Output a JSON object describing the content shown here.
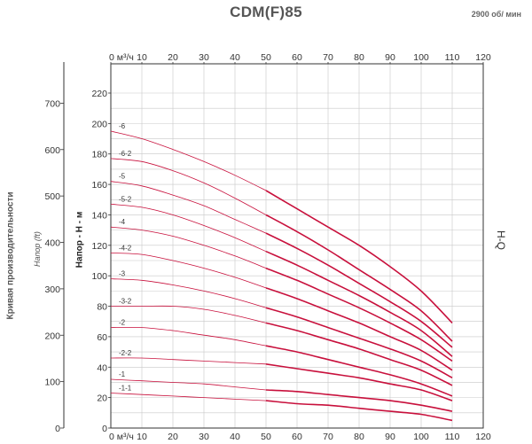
{
  "chart_data": {
    "type": "line",
    "title": "CDM(F)85",
    "speed": "2900 об/ мин",
    "xlabel_unit": "м³/ч",
    "x_ticks": [
      0,
      10,
      20,
      30,
      40,
      50,
      60,
      70,
      80,
      90,
      100,
      110,
      120
    ],
    "xlim": [
      0,
      120
    ],
    "ylabel_m": "Напор - H - м",
    "ylim_m": [
      0,
      230
    ],
    "y_ticks_m": [
      0,
      20,
      40,
      60,
      80,
      100,
      120,
      140,
      160,
      180,
      200,
      220
    ],
    "ylabel_ft": "Напор (ft)",
    "y_ticks_ft": [
      0,
      100,
      200,
      300,
      400,
      500,
      600,
      700
    ],
    "side_label": "Кривая производительности",
    "right_label": "H-Q",
    "series": [
      {
        "name": "-6",
        "x": [
          0,
          10,
          20,
          30,
          40,
          50,
          60,
          70,
          80,
          90,
          100,
          110
        ],
        "values": [
          195,
          190,
          183,
          175,
          166,
          156,
          144,
          132,
          120,
          106,
          90,
          69
        ]
      },
      {
        "name": "-6-2",
        "x": [
          0,
          10,
          20,
          30,
          40,
          50,
          60,
          70,
          80,
          90,
          100,
          110
        ],
        "values": [
          177,
          175,
          169,
          161,
          151,
          140,
          129,
          117,
          104,
          91,
          77,
          57
        ]
      },
      {
        "name": "-5",
        "x": [
          0,
          10,
          20,
          30,
          40,
          50,
          60,
          70,
          80,
          90,
          100,
          110
        ],
        "values": [
          162,
          159,
          153,
          146,
          137,
          128,
          118,
          107,
          95,
          83,
          70,
          53
        ]
      },
      {
        "name": "-5-2",
        "x": [
          0,
          10,
          20,
          30,
          40,
          50,
          60,
          70,
          80,
          90,
          100,
          110
        ],
        "values": [
          147,
          145,
          140,
          133,
          125,
          116,
          107,
          97,
          87,
          76,
          64,
          47
        ]
      },
      {
        "name": "-4",
        "x": [
          0,
          10,
          20,
          30,
          40,
          50,
          60,
          70,
          80,
          90,
          100,
          110
        ],
        "values": [
          132,
          130,
          126,
          120,
          113,
          105,
          97,
          88,
          79,
          69,
          58,
          44
        ]
      },
      {
        "name": "-4-2",
        "x": [
          0,
          10,
          20,
          30,
          40,
          50,
          60,
          70,
          80,
          90,
          100,
          110
        ],
        "values": [
          115,
          114,
          110,
          105,
          99,
          92,
          85,
          77,
          69,
          60,
          51,
          38
        ]
      },
      {
        "name": "-3",
        "x": [
          0,
          10,
          20,
          30,
          40,
          50,
          60,
          70,
          80,
          90,
          100,
          110
        ],
        "values": [
          98,
          97,
          94,
          90,
          85,
          79,
          73,
          66,
          59,
          52,
          44,
          33
        ]
      },
      {
        "name": "-3-2",
        "x": [
          0,
          10,
          20,
          30,
          40,
          50,
          60,
          70,
          80,
          90,
          100,
          110
        ],
        "values": [
          80,
          80,
          80,
          78,
          74,
          69,
          64,
          58,
          52,
          45,
          38,
          28
        ]
      },
      {
        "name": "-2",
        "x": [
          0,
          10,
          20,
          30,
          40,
          50,
          60,
          70,
          80,
          90,
          100,
          110
        ],
        "values": [
          66,
          66,
          64,
          61,
          58,
          54,
          50,
          45,
          40,
          35,
          29,
          21
        ]
      },
      {
        "name": "-2-2",
        "x": [
          0,
          10,
          20,
          30,
          40,
          50,
          60,
          70,
          80,
          90,
          100,
          110
        ],
        "values": [
          46,
          46,
          45,
          44,
          43,
          42,
          39,
          36,
          33,
          29,
          25,
          18
        ]
      },
      {
        "name": "-1",
        "x": [
          0,
          10,
          20,
          30,
          40,
          50,
          60,
          70,
          80,
          90,
          100,
          110
        ],
        "values": [
          32,
          31,
          30,
          29,
          27,
          25,
          24,
          22,
          20,
          18,
          15,
          11
        ]
      },
      {
        "name": "-1-1",
        "x": [
          0,
          10,
          20,
          30,
          40,
          50,
          60,
          70,
          80,
          90,
          100,
          110
        ],
        "values": [
          23,
          22,
          21,
          20,
          19,
          18,
          16,
          15,
          13,
          11,
          9,
          5
        ]
      }
    ],
    "colors": {
      "curve": "#c8103c",
      "grid": "#c8c8c8",
      "axis": "#333333"
    }
  }
}
